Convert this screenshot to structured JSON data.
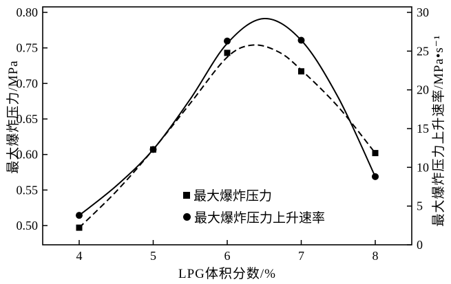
{
  "chart_data": {
    "type": "line",
    "title": "",
    "x_axis": {
      "label": "LPG体积分数/%",
      "range": [
        4,
        8
      ],
      "ticks": [
        4,
        5,
        6,
        7,
        8
      ],
      "tick_labels": [
        "4",
        "5",
        "6",
        "7",
        "8"
      ]
    },
    "left_axis": {
      "label": "最大爆炸压力/MPa",
      "range": [
        0.5,
        0.8
      ],
      "ticks": [
        0.5,
        0.55,
        0.6,
        0.65,
        0.7,
        0.75,
        0.8
      ],
      "tick_labels": [
        "0.50",
        "0.55",
        "0.60",
        "0.65",
        "0.70",
        "0.75",
        "0.80"
      ]
    },
    "right_axis": {
      "label": "最大爆炸压力上升速率/MPa•s⁻¹",
      "range": [
        0,
        30
      ],
      "ticks": [
        0,
        5,
        10,
        15,
        20,
        25,
        30
      ],
      "tick_labels": [
        "0",
        "5",
        "10",
        "15",
        "20",
        "25",
        "30"
      ]
    },
    "grid": false,
    "legend_position": "inside-bottom-center",
    "series": [
      {
        "name": "最大爆炸压力",
        "axis": "left",
        "marker": "square",
        "line": "dashed",
        "color": "#000000",
        "points": [
          [
            4,
            0.497
          ],
          [
            5,
            0.607
          ],
          [
            6,
            0.743
          ],
          [
            7,
            0.717
          ],
          [
            8,
            0.602
          ]
        ],
        "curve": [
          [
            4,
            0.497
          ],
          [
            4.5,
            0.548
          ],
          [
            5,
            0.607
          ],
          [
            5.5,
            0.672
          ],
          [
            6,
            0.737
          ],
          [
            6.35,
            0.754
          ],
          [
            6.7,
            0.744
          ],
          [
            7,
            0.719
          ],
          [
            7.5,
            0.667
          ],
          [
            8,
            0.602
          ]
        ]
      },
      {
        "name": "最大爆炸压力上升速率",
        "axis": "right",
        "marker": "circle",
        "line": "solid",
        "color": "#000000",
        "points": [
          [
            4,
            3.8
          ],
          [
            5,
            12.3
          ],
          [
            6,
            26.3
          ],
          [
            7,
            26.4
          ],
          [
            8,
            8.8
          ]
        ],
        "curve": [
          [
            4,
            3.8
          ],
          [
            4.5,
            7.6
          ],
          [
            5,
            12.3
          ],
          [
            5.5,
            18.8
          ],
          [
            6,
            26.0
          ],
          [
            6.5,
            29.2
          ],
          [
            7,
            26.4
          ],
          [
            7.5,
            19.0
          ],
          [
            8,
            8.8
          ]
        ]
      }
    ]
  },
  "colors": {
    "foreground": "#000000",
    "background": "#ffffff"
  }
}
